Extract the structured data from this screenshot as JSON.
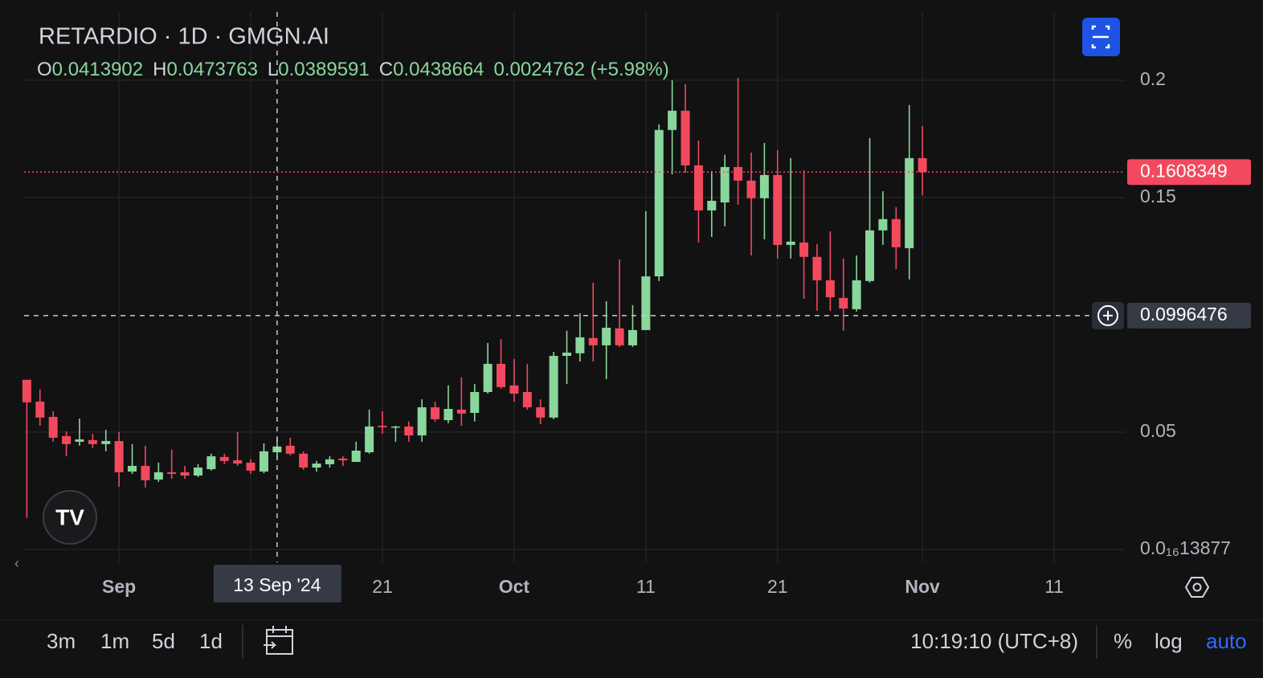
{
  "chart_data": {
    "type": "candlestick",
    "title": "RETARDIO · 1D · GMGN.AI",
    "legend_labels": [
      "O",
      "H",
      "L",
      "C"
    ],
    "change": "0.0024762 (+5.98%)",
    "up_color": "#89d79b",
    "down_color": "#f2495f",
    "grid": true,
    "x": [
      "2024-08-25",
      "2024-08-26",
      "2024-08-27",
      "2024-08-28",
      "2024-08-29",
      "2024-08-30",
      "2024-08-31",
      "2024-09-01",
      "2024-09-02",
      "2024-09-03",
      "2024-09-04",
      "2024-09-05",
      "2024-09-06",
      "2024-09-07",
      "2024-09-08",
      "2024-09-09",
      "2024-09-10",
      "2024-09-11",
      "2024-09-12",
      "2024-09-13",
      "2024-09-14",
      "2024-09-15",
      "2024-09-16",
      "2024-09-17",
      "2024-09-18",
      "2024-09-19",
      "2024-09-20",
      "2024-09-21",
      "2024-09-22",
      "2024-09-23",
      "2024-09-24",
      "2024-09-25",
      "2024-09-26",
      "2024-09-27",
      "2024-09-28",
      "2024-09-29",
      "2024-09-30",
      "2024-10-01",
      "2024-10-02",
      "2024-10-03",
      "2024-10-04",
      "2024-10-05",
      "2024-10-06",
      "2024-10-07",
      "2024-10-08",
      "2024-10-09",
      "2024-10-10",
      "2024-10-11",
      "2024-10-12",
      "2024-10-13",
      "2024-10-14",
      "2024-10-15",
      "2024-10-16",
      "2024-10-17",
      "2024-10-18",
      "2024-10-19",
      "2024-10-20",
      "2024-10-21",
      "2024-10-22",
      "2024-10-23",
      "2024-10-24",
      "2024-10-25",
      "2024-10-26",
      "2024-10-27",
      "2024-10-28",
      "2024-10-29",
      "2024-10-30",
      "2024-10-31",
      "2024-11-01"
    ],
    "open": [
      0.0723,
      0.063,
      0.0565,
      0.0483,
      0.0459,
      0.0466,
      0.0449,
      0.0462,
      0.0332,
      0.0356,
      0.0298,
      0.0329,
      0.0329,
      0.0315,
      0.0342,
      0.0394,
      0.038,
      0.037,
      0.0332,
      0.0413902,
      0.0442,
      0.0408,
      0.0349,
      0.0363,
      0.0387,
      0.0373,
      0.0414,
      0.0527,
      0.0521,
      0.0524,
      0.0486,
      0.0606,
      0.0551,
      0.0596,
      0.0582,
      0.0671,
      0.0791,
      0.0699,
      0.0671,
      0.0606,
      0.0562,
      0.0825,
      0.0836,
      0.0901,
      0.087,
      0.0942,
      0.087,
      0.0935,
      0.1164,
      0.1788,
      0.187,
      0.1637,
      0.1445,
      0.1479,
      0.163,
      0.1572,
      0.1497,
      0.1596,
      0.1298,
      0.1308,
      0.1247,
      0.1147,
      0.1072,
      0.1024,
      0.1144,
      0.136,
      0.1408,
      0.1284,
      0.1668
    ],
    "high": [
      0.0723,
      0.0682,
      0.0589,
      0.0503,
      0.0558,
      0.0493,
      0.051,
      0.05,
      0.0449,
      0.0442,
      0.037,
      0.0425,
      0.0356,
      0.0363,
      0.0408,
      0.0408,
      0.05,
      0.0384,
      0.0452,
      0.0473763,
      0.0476,
      0.0418,
      0.0377,
      0.0397,
      0.0397,
      0.0459,
      0.0596,
      0.0589,
      0.0527,
      0.0545,
      0.064,
      0.063,
      0.0699,
      0.0733,
      0.0705,
      0.088,
      0.0897,
      0.0812,
      0.0791,
      0.064,
      0.0842,
      0.0932,
      0.1007,
      0.1137,
      0.1058,
      0.1236,
      0.1041,
      0.1442,
      0.1812,
      0.2,
      0.1983,
      0.1743,
      0.1613,
      0.1682,
      0.201,
      0.1692,
      0.1733,
      0.1702,
      0.1668,
      0.1616,
      0.1301,
      0.1356,
      0.124,
      0.1253,
      0.1753,
      0.1527,
      0.1459,
      0.1894,
      0.1805
    ],
    "low": [
      0.0134,
      0.0527,
      0.0459,
      0.0397,
      0.0442,
      0.0432,
      0.0418,
      0.0267,
      0.0322,
      0.0264,
      0.0288,
      0.0301,
      0.0301,
      0.0308,
      0.0336,
      0.0363,
      0.0356,
      0.0322,
      0.0325,
      0.0389591,
      0.0401,
      0.0339,
      0.0332,
      0.0349,
      0.0356,
      0.0373,
      0.0408,
      0.0493,
      0.0459,
      0.0459,
      0.0459,
      0.0545,
      0.0538,
      0.0527,
      0.0545,
      0.0664,
      0.0685,
      0.063,
      0.0596,
      0.0534,
      0.0555,
      0.0705,
      0.0801,
      0.0801,
      0.0726,
      0.0863,
      0.0863,
      0.0935,
      0.1144,
      0.1599,
      0.1606,
      0.1308,
      0.1332,
      0.1377,
      0.1469,
      0.1253,
      0.1322,
      0.124,
      0.124,
      0.1068,
      0.1017,
      0.1017,
      0.0932,
      0.1014,
      0.1137,
      0.1298,
      0.1195,
      0.1151,
      0.151
    ],
    "close": [
      0.0627,
      0.0562,
      0.0476,
      0.0449,
      0.0469,
      0.0449,
      0.0462,
      0.0329,
      0.0356,
      0.0295,
      0.0329,
      0.0322,
      0.0315,
      0.0349,
      0.0397,
      0.0377,
      0.0366,
      0.0336,
      0.0418,
      0.0438664,
      0.0408,
      0.0349,
      0.0366,
      0.0384,
      0.038,
      0.0421,
      0.0524,
      0.0521,
      0.0524,
      0.0486,
      0.0606,
      0.0555,
      0.0599,
      0.0579,
      0.0671,
      0.0791,
      0.0692,
      0.0664,
      0.0606,
      0.0562,
      0.0825,
      0.0839,
      0.0904,
      0.087,
      0.0945,
      0.087,
      0.0935,
      0.1164,
      0.1788,
      0.187,
      0.1637,
      0.1445,
      0.1486,
      0.163,
      0.1572,
      0.1497,
      0.1596,
      0.1298,
      0.1312,
      0.1247,
      0.1147,
      0.1075,
      0.1027,
      0.1147,
      0.136,
      0.1408,
      0.1288,
      0.1668,
      0.1608349
    ],
    "xlim": [
      "2024-08-24",
      "2024-11-16"
    ],
    "xticks": [
      {
        "value": "2024-09-01",
        "label": "Sep"
      },
      {
        "value": "2024-09-11",
        "label": "11"
      },
      {
        "value": "2024-09-21",
        "label": "21"
      },
      {
        "value": "2024-10-01",
        "label": "Oct"
      },
      {
        "value": "2024-10-11",
        "label": "11"
      },
      {
        "value": "2024-10-21",
        "label": "21"
      },
      {
        "value": "2024-11-01",
        "label": "Nov"
      },
      {
        "value": "2024-11-11",
        "label": "11"
      }
    ],
    "ylim": [
      -0.0055,
      0.2342
    ],
    "yticks": [
      {
        "value": 1.3877e-17,
        "label": "0.0₁₆13877"
      },
      0.05,
      0.15,
      0.2
    ],
    "crosshair": {
      "x": "2024-09-13",
      "x_label": "13 Sep '24",
      "y": 0.0996476
    }
  },
  "toolbar": {
    "ranges": [
      "3m",
      "1m",
      "5d",
      "1d"
    ],
    "time": "10:19:10 (UTC+8)",
    "options": [
      "%",
      "log",
      "auto"
    ]
  }
}
